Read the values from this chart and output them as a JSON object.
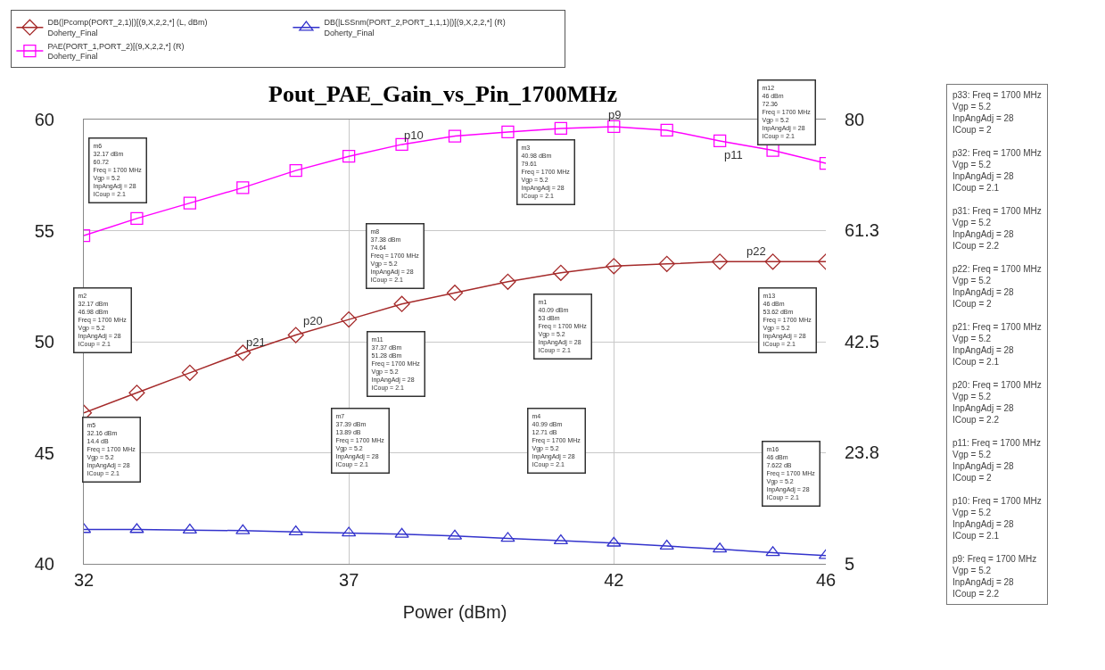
{
  "chart_data": {
    "type": "line",
    "title": "Pout_PAE_Gain_vs_Pin_1700MHz",
    "xlabel": "Power (dBm)",
    "x": [
      32,
      33,
      34,
      35,
      36,
      37,
      38,
      39,
      40,
      41,
      42,
      43,
      44,
      45,
      46
    ],
    "series": [
      {
        "name": "DB(|Pcomp(PORT_2,1)|)[(9,X,2,2,*] (L, dBm)\nDoherty_Final",
        "color": "#a52a2a",
        "marker": "diamond",
        "values": [
          46.8,
          47.7,
          48.6,
          49.5,
          50.3,
          51.0,
          51.7,
          52.2,
          52.7,
          53.1,
          53.4,
          53.5,
          53.6,
          53.6,
          53.6
        ]
      },
      {
        "name": "DB(|LSSnm(PORT_2,PORT_1,1,1)|)[(9,X,2,2,*] (R)\nDoherty_Final",
        "color": "#3333cc",
        "marker": "triangle",
        "axis": "y2",
        "values": [
          10.8,
          10.8,
          10.7,
          10.6,
          10.4,
          10.2,
          10.0,
          9.7,
          9.3,
          8.9,
          8.5,
          8.0,
          7.5,
          6.9,
          6.4
        ]
      },
      {
        "name": "PAE(PORT_1,PORT_2)[(9,X,2,2,*] (R)\nDoherty_Final",
        "color": "#ff00ff",
        "marker": "square",
        "axis": "y2",
        "values": [
          60.4,
          63.3,
          65.9,
          68.5,
          71.4,
          73.8,
          75.8,
          77.2,
          77.9,
          78.5,
          78.8,
          78.2,
          76.4,
          74.8,
          72.6
        ]
      }
    ],
    "xlim": [
      32,
      46
    ],
    "xticks": [
      32,
      37,
      42,
      46
    ],
    "ylim": [
      40,
      60
    ],
    "yticks": [
      40,
      45,
      50,
      55,
      60
    ],
    "y2lim": [
      5,
      80
    ],
    "y2ticks": [
      5,
      23.8,
      42.5,
      61.3,
      80
    ],
    "grid": true,
    "legend": "top",
    "line_style": "solid",
    "annotations": [
      "m6\n32.17 dBm\n60.72\nFreq = 1700 MHz\nVgp = 5.2\nInpAngAdj = 28\nICoup = 2.1",
      "m8\n37.38 dBm\n74.64\nFreq = 1700 MHz\nVgp = 5.2\nInpAngAdj = 28\nICoup = 2.1",
      "m3\n40.98 dBm\n79.61\nFreq = 1700 MHz\nVgp = 5.2\nInpAngAdj = 28\nICoup = 2.1",
      "m12\n46 dBm\n72.36\nFreq = 1700 MHz\nVgp = 5.2\nInpAngAdj = 28\nICoup = 2.1",
      "m2\n32.17 dBm\n46.98 dBm\nFreq = 1700 MHz\nVgp = 5.2\nInpAngAdj = 28\nICoup = 2.1",
      "m11\n37.37 dBm\n51.28 dBm\nFreq = 1700 MHz\nVgp = 5.2\nInpAngAdj = 28\nICoup = 2.1",
      "m1\n40.09 dBm\n53 dBm\nFreq = 1700 MHz\nVgp = 5.2\nInpAngAdj = 28\nICoup = 2.1",
      "m13\n46 dBm\n53.62 dBm\nFreq = 1700 MHz\nVgp = 5.2\nInpAngAdj = 28\nICoup = 2.1",
      "m5\n32.16 dBm\n14.4 dB\nFreq = 1700 MHz\nVgp = 5.2\nInpAngAdj = 28\nICoup = 2.1",
      "m7\n37.39 dBm\n13.89 dB\nFreq = 1700 MHz\nVgp = 5.2\nInpAngAdj = 28\nICoup = 2.1",
      "m4\n40.99 dBm\n12.71 dB\nFreq = 1700 MHz\nVgp = 5.2\nInpAngAdj = 28\nICoup = 2.1",
      "m16\n46 dBm\n7.622 dB\nFreq = 1700 MHz\nVgp = 5.2\nInpAngAdj = 28\nICoup = 2.1",
      "p10",
      "p9",
      "p11",
      "p20",
      "p21",
      "p22",
      "p33: Freq = 1700 MHz\nVgp = 5.2\nInpAngAdj = 28\nICoup = 2\n\np32: Freq = 1700 MHz\nVgp = 5.2\nInpAngAdj = 28\nICoup = 2.1\n\np31: Freq = 1700 MHz\nVgp = 5.2\nInpAngAdj = 28\nICoup = 2.2\n\np22: Freq = 1700 MHz\nVgp = 5.2\nInpAngAdj = 28\nICoup = 2\n\np21: Freq = 1700 MHz\nVgp = 5.2\nInpAngAdj = 28\nICoup = 2.1\n\np20: Freq = 1700 MHz\nVgp = 5.2\nInpAngAdj = 28\nICoup = 2.2\n\np11: Freq = 1700 MHz\nVgp = 5.2\nInpAngAdj = 28\nICoup = 2\n\np10: Freq = 1700 MHz\nVgp = 5.2\nInpAngAdj = 28\nICoup = 2.1\n\np9: Freq = 1700 MHz\nVgp = 5.2\nInpAngAdj = 28\nICoup = 2.2"
    ]
  }
}
